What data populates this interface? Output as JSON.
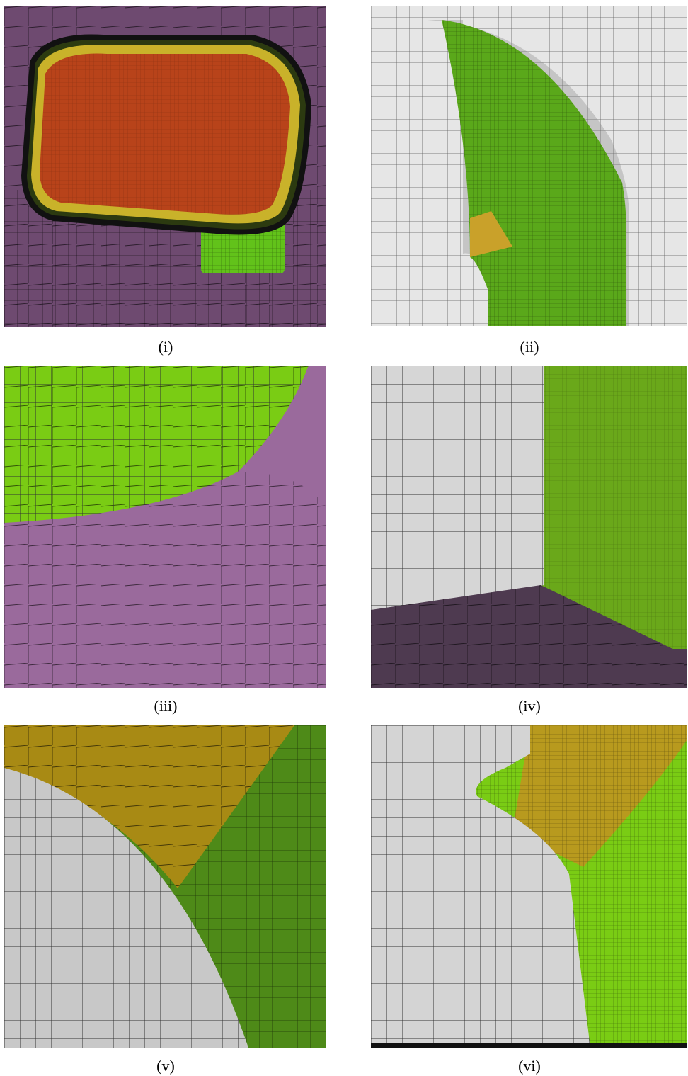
{
  "figure": {
    "panels": [
      {
        "caption": "(i)"
      },
      {
        "caption": "(ii)"
      },
      {
        "caption": "(iii)"
      },
      {
        "caption": "(iv)"
      },
      {
        "caption": "(v)"
      },
      {
        "caption": "(vi)"
      }
    ]
  }
}
